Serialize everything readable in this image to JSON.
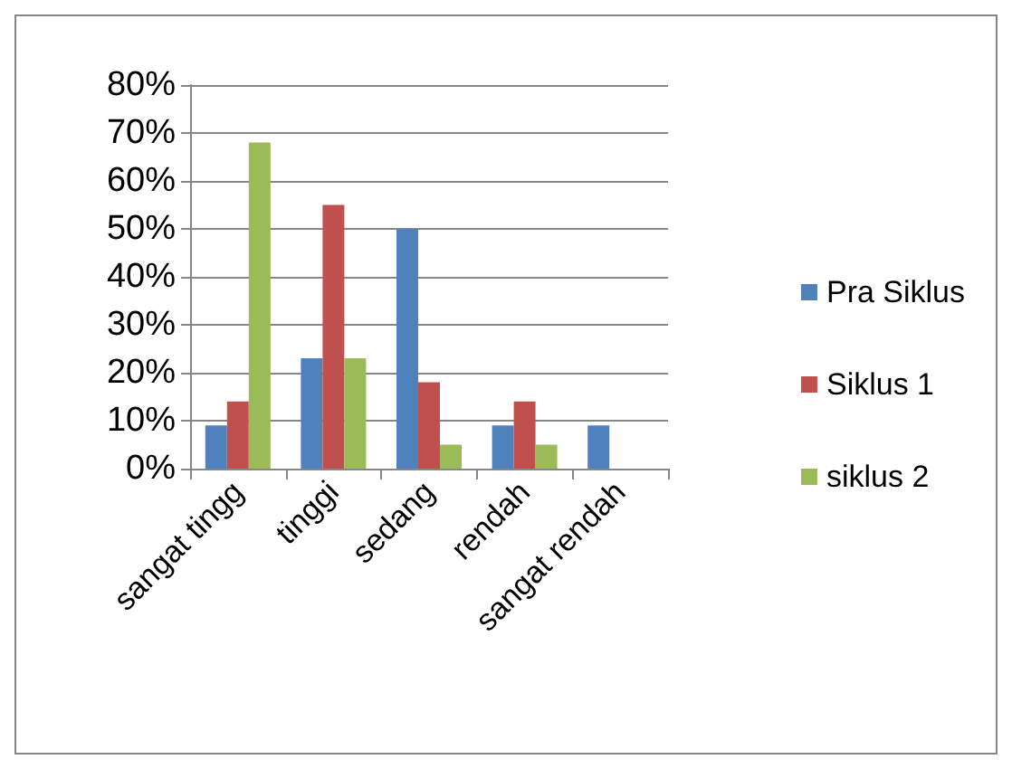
{
  "chart_data": {
    "type": "bar",
    "categories": [
      "sangat tingg",
      "tinggi",
      "sedang",
      "rendah",
      "sangat rendah"
    ],
    "series": [
      {
        "name": "Pra Siklus",
        "color": "#4f81bd",
        "values": [
          9,
          23,
          50,
          9,
          9
        ]
      },
      {
        "name": "Siklus 1",
        "color": "#c0504d",
        "values": [
          14,
          55,
          18,
          14,
          0
        ]
      },
      {
        "name": "siklus 2",
        "color": "#9bbb59",
        "values": [
          68,
          23,
          5,
          5,
          0
        ]
      }
    ],
    "ylim": [
      0,
      80
    ],
    "yticks": [
      {
        "value": 0,
        "label": "0%"
      },
      {
        "value": 10,
        "label": "10%"
      },
      {
        "value": 20,
        "label": "20%"
      },
      {
        "value": 30,
        "label": "30%"
      },
      {
        "value": 40,
        "label": "40%"
      },
      {
        "value": 50,
        "label": "50%"
      },
      {
        "value": 60,
        "label": "60%"
      },
      {
        "value": 70,
        "label": "70%"
      },
      {
        "value": 80,
        "label": "80%"
      }
    ],
    "grid": "y",
    "legend": "right"
  }
}
